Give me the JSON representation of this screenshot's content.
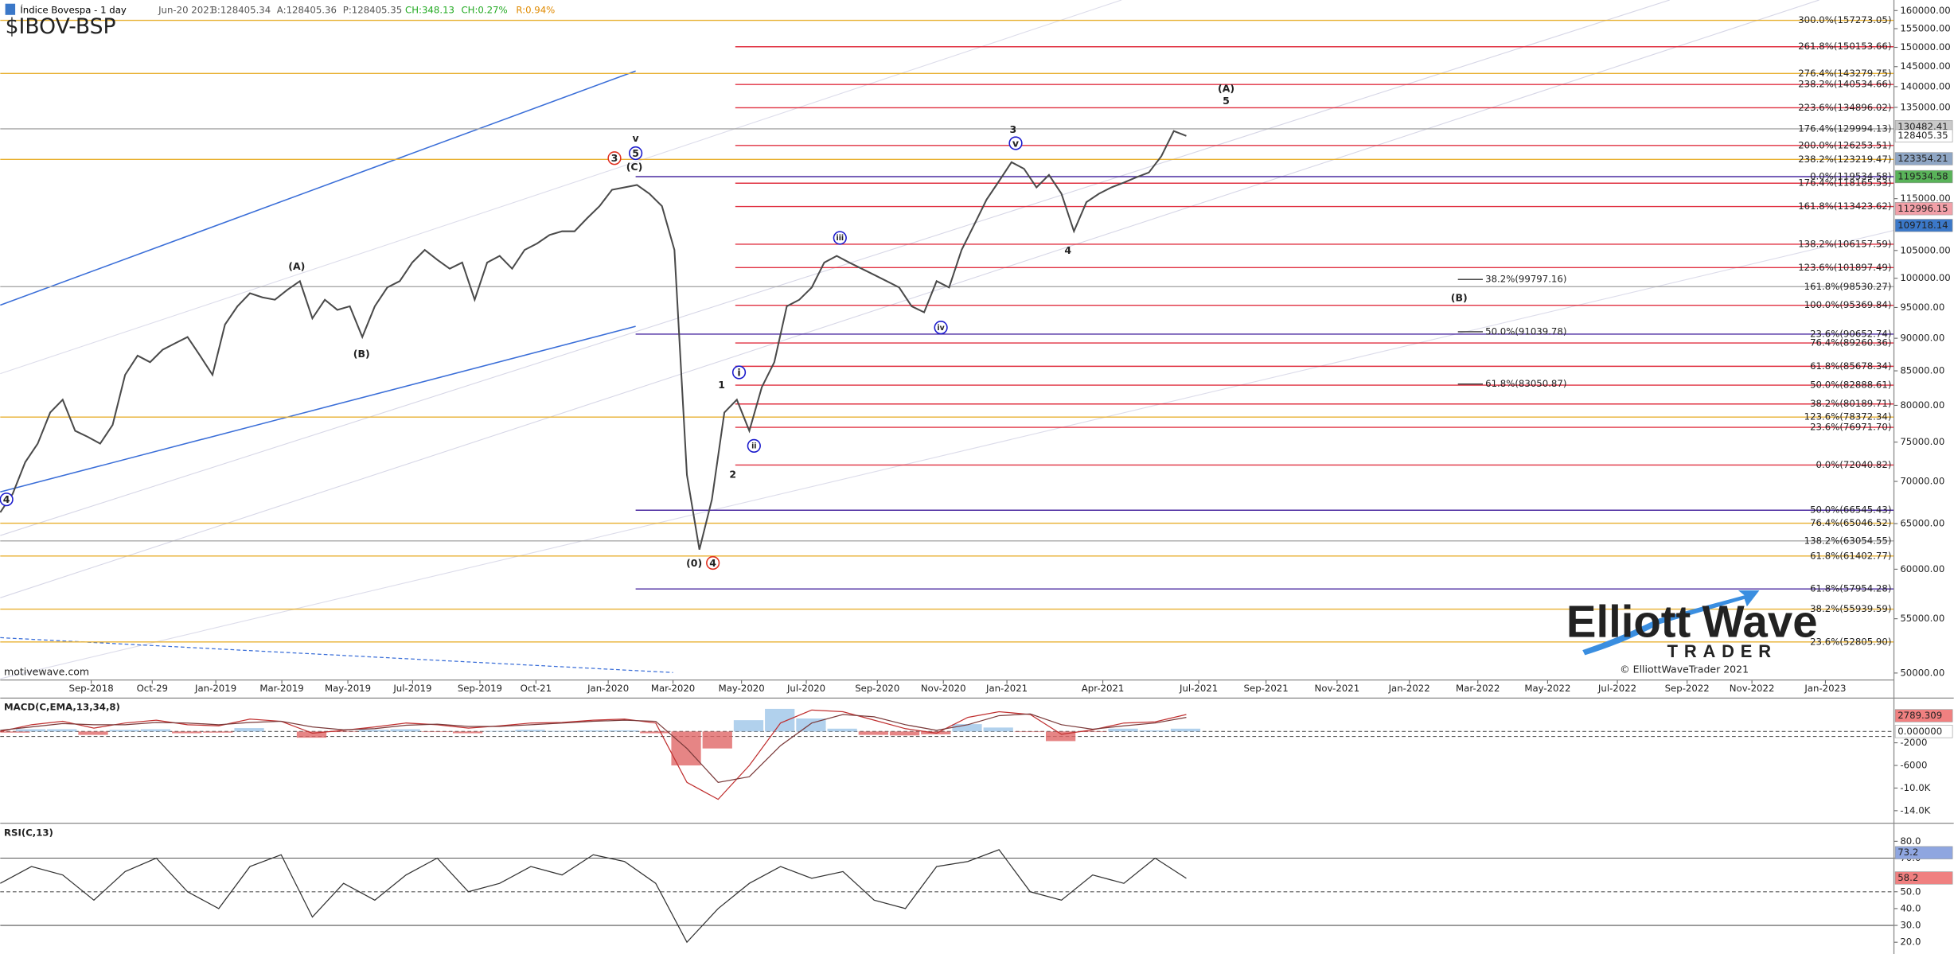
{
  "header": [
    {
      "text": "Índice Bovespa - 1 day",
      "color": "#000000"
    },
    {
      "text": "Jun-20 2021",
      "color": "#555555"
    },
    {
      "text": "B:128405.34",
      "color": "#555555"
    },
    {
      "text": "A:128405.36",
      "color": "#555555"
    },
    {
      "text": "P:128405.35",
      "color": "#555555"
    },
    {
      "text": "CH:348.13",
      "color": "#22aa22"
    },
    {
      "text": "CH:0.27%",
      "color": "#22aa22"
    },
    {
      "text": "R:0.94%",
      "color": "#e08a00"
    }
  ],
  "watermark": "motivewave.com",
  "logo": {
    "word1": "Elliott",
    "word2": "Wave",
    "word3": "TRADER",
    "copyright": "© ElliottWaveTrader 2021"
  },
  "chart_data": [
    {
      "type": "line",
      "title": "$IBOV-BSP",
      "log_scale": true,
      "ylim": [
        49500,
        163000
      ],
      "yticks": [
        {
          "value": 160000,
          "label": "160000.00"
        },
        {
          "value": 155000,
          "label": "155000.00"
        },
        {
          "value": 150000,
          "label": "150000.00"
        },
        {
          "value": 145000,
          "label": "145000.00"
        },
        {
          "value": 140000,
          "label": "140000.00"
        },
        {
          "value": 135000,
          "label": "135000.00"
        },
        {
          "value": 115000,
          "label": "115000.00"
        },
        {
          "value": 105000,
          "label": "105000.00"
        },
        {
          "value": 100000,
          "label": "100000.00"
        },
        {
          "value": 95000,
          "label": "95000.00"
        },
        {
          "value": 90000,
          "label": "90000.00"
        },
        {
          "value": 85000,
          "label": "85000.00"
        },
        {
          "value": 80000,
          "label": "80000.00"
        },
        {
          "value": 75000,
          "label": "75000.00"
        },
        {
          "value": 70000,
          "label": "70000.00"
        },
        {
          "value": 65000,
          "label": "65000.00"
        },
        {
          "value": 60000,
          "label": "60000.00"
        },
        {
          "value": 55000,
          "label": "55000.00"
        },
        {
          "value": 50000,
          "label": "50000.00"
        }
      ],
      "x_labels": [
        "Sep-2018",
        "Oct-29",
        "Jan-2019",
        "Mar-2019",
        "May-2019",
        "Jul-2019",
        "Sep-2019",
        "Oct-21",
        "Jan-2020",
        "Mar-2020",
        "May-2020",
        "Jul-2020",
        "Sep-2020",
        "Nov-2020",
        "Jan-2021",
        "Apr-2021",
        "Jul-2021",
        "Sep-2021",
        "Nov-2021",
        "Jan-2022",
        "Mar-2022",
        "May-2022",
        "Jul-2022",
        "Sep-2022",
        "Nov-2022",
        "Jan-2023"
      ],
      "series": [
        {
          "color": "#4a4a4a",
          "values": [
            66300,
            68500,
            72400,
            74800,
            79000,
            80800,
            76500,
            75700,
            74800,
            77300,
            84400,
            87300,
            86300,
            88200,
            89200,
            90200,
            87300,
            84400,
            92200,
            95200,
            97400,
            96700,
            96300,
            98000,
            99500,
            93200,
            96300,
            94600,
            95200,
            90200,
            95200,
            98400,
            99500,
            102800,
            105100,
            103300,
            101700,
            102800,
            96300,
            102800,
            104000,
            101700,
            105100,
            106300,
            107900,
            108600,
            108600,
            111100,
            113500,
            116800,
            117300,
            117800,
            116000,
            113500,
            105100,
            70800,
            62100,
            67800,
            79000,
            80800,
            76500,
            82600,
            86300,
            95200,
            96300,
            98400,
            102800,
            104000,
            102800,
            101700,
            100600,
            99500,
            98400,
            95200,
            94200,
            99500,
            98400,
            105100,
            109800,
            114800,
            118600,
            122600,
            121200,
            117300,
            119900,
            116000,
            108600,
            114300,
            116000,
            117300,
            118300,
            119400,
            120400,
            123900,
            129500,
            128400
          ]
        }
      ],
      "fib_groups": [
        {
          "color": "#e8b030",
          "levels": [
            {
              "value": 157273.05,
              "label": "300.0%(157273.05)"
            },
            {
              "value": 143279.75,
              "label": "276.4%(143279.75)"
            },
            {
              "value": 123219.47,
              "label": "238.2%(123219.47)"
            },
            {
              "value": 78372.34,
              "label": "123.6%(78372.34)"
            },
            {
              "value": 65046.52,
              "label": "76.4%(65046.52)"
            },
            {
              "value": 61402.77,
              "label": "61.8%(61402.77)"
            },
            {
              "value": 55939.59,
              "label": "38.2%(55939.59)"
            },
            {
              "value": 52805.9,
              "label": "23.6%(52805.90)"
            }
          ]
        },
        {
          "color": "#a8a8a8",
          "levels": [
            {
              "value": 129994.13,
              "label": "176.4%(129994.13)"
            },
            {
              "value": 98530.27,
              "label": "161.8%(98530.27)"
            },
            {
              "value": 63054.55,
              "label": "138.2%(63054.55)"
            }
          ]
        },
        {
          "color": "#e03040",
          "levels": [
            {
              "value": 150153.66,
              "label": "261.8%(150153.66)"
            },
            {
              "value": 140534.66,
              "label": "238.2%(140534.66)"
            },
            {
              "value": 134896.02,
              "label": "223.6%(134896.02)"
            },
            {
              "value": 126253.51,
              "label": "200.0%(126253.51)"
            },
            {
              "value": 118165.53,
              "label": "176.4%(118165.53)"
            },
            {
              "value": 113423.62,
              "label": "161.8%(113423.62)"
            },
            {
              "value": 106157.59,
              "label": "138.2%(106157.59)"
            },
            {
              "value": 101897.49,
              "label": "123.6%(101897.49)"
            },
            {
              "value": 95369.84,
              "label": "100.0%(95369.84)"
            },
            {
              "value": 89260.36,
              "label": "76.4%(89260.36)"
            },
            {
              "value": 85678.34,
              "label": "61.8%(85678.34)"
            },
            {
              "value": 82888.61,
              "label": "50.0%(82888.61)"
            },
            {
              "value": 80189.71,
              "label": "38.2%(80189.71)"
            },
            {
              "value": 76971.7,
              "label": "23.6%(76971.70)"
            },
            {
              "value": 72040.82,
              "label": "0.0%(72040.82)"
            }
          ]
        },
        {
          "color": "#4a2aa0",
          "levels": [
            {
              "value": 119534.58,
              "label": "0.0%(119534.58)"
            },
            {
              "value": 90652.74,
              "label": "23.6%(90652.74)"
            },
            {
              "value": 66545.43,
              "label": "50.0%(66545.43)"
            },
            {
              "value": 57954.28,
              "label": "61.8%(57954.28)"
            }
          ]
        },
        {
          "color": "#333333",
          "levels": [
            {
              "value": 99797.16,
              "label": "38.2%(99797.16)"
            },
            {
              "value": 91039.78,
              "label": "50.0%(91039.78)"
            },
            {
              "value": 83050.87,
              "label": "61.8%(83050.87)"
            }
          ]
        }
      ],
      "badges": [
        {
          "value": 130482.41,
          "color": "#c9c9c9"
        },
        {
          "value": 128405.35,
          "color": "#ffffff"
        },
        {
          "value": 123354.21,
          "color": "#8fa6c4"
        },
        {
          "value": 119534.58,
          "color": "#59b359"
        },
        {
          "value": 112996.15,
          "color": "#f2a0a8"
        },
        {
          "value": 109718.14,
          "color": "#3b78c8"
        }
      ],
      "wave_labels": [
        {
          "text": "4",
          "color": "#1a1acc",
          "circled": true
        },
        {
          "text": "(A)",
          "color": "#1a1acc",
          "circled": false
        },
        {
          "text": "(B)",
          "color": "#1a1acc",
          "circled": false
        },
        {
          "text": "3",
          "color": "#e03020",
          "circled": true
        },
        {
          "text": "v",
          "color": "#1a1acc",
          "circled": false
        },
        {
          "text": "5",
          "color": "#1a1acc",
          "circled": true
        },
        {
          "text": "(C)",
          "color": "#1a1acc",
          "circled": false
        },
        {
          "text": "(0)",
          "color": "#1a1acc",
          "circled": false
        },
        {
          "text": "4",
          "color": "#e03020",
          "circled": true
        },
        {
          "text": "1",
          "color": "#1a1acc",
          "circled": false
        },
        {
          "text": "i",
          "color": "#1a1acc",
          "circled": true
        },
        {
          "text": "2",
          "color": "#1a1acc",
          "circled": false
        },
        {
          "text": "ii",
          "color": "#1a1acc",
          "circled": true
        },
        {
          "text": "iii",
          "color": "#1a1acc",
          "circled": true
        },
        {
          "text": "iv",
          "color": "#1a1acc",
          "circled": true
        },
        {
          "text": "3",
          "color": "#1a1acc",
          "circled": false
        },
        {
          "text": "v",
          "color": "#1a1acc",
          "circled": true
        },
        {
          "text": "4",
          "color": "#1a1acc",
          "circled": false
        },
        {
          "text": "(A)",
          "color": "#4b2a9a",
          "circled": false
        },
        {
          "text": "5",
          "color": "#1a1acc",
          "circled": false
        },
        {
          "text": "(B)",
          "color": "#1a1acc",
          "circled": false
        }
      ]
    },
    {
      "type": "line",
      "title": "MACD(C,EMA,13,34,8)",
      "zero_line": true,
      "ylim": [
        -16000,
        5800
      ],
      "yticks": [
        -2000,
        -6000,
        {
          "value": -10000,
          "label": "-10.0K"
        },
        {
          "value": -14000,
          "label": "-14.0K"
        }
      ],
      "histogram": {
        "pos_color": "#9ec5e8",
        "neg_color": "#e06666",
        "values": [
          -200,
          400,
          400,
          -600,
          300,
          400,
          -300,
          -200,
          600,
          0,
          -1100,
          -100,
          300,
          400,
          -100,
          -300,
          100,
          300,
          100,
          200,
          200,
          -300,
          -6000,
          -3000,
          2000,
          4000,
          2300,
          500,
          -600,
          -700,
          -500,
          1300,
          700,
          -100,
          -1700,
          -100,
          500,
          200,
          500
        ]
      },
      "series": [
        {
          "color": "#c03030",
          "values": [
            0,
            1200,
            1800,
            600,
            1500,
            2000,
            1200,
            1000,
            2200,
            1800,
            -300,
            200,
            800,
            1500,
            1200,
            600,
            1000,
            1500,
            1600,
            2000,
            2200,
            1500,
            -9000,
            -12000,
            -6000,
            1500,
            3800,
            3500,
            2000,
            500,
            -300,
            2500,
            3500,
            3000,
            -500,
            300,
            1500,
            1700,
            3000
          ]
        },
        {
          "color": "#7a3a3a",
          "values": [
            200,
            800,
            1400,
            1200,
            1200,
            1600,
            1500,
            1200,
            1600,
            1800,
            800,
            300,
            500,
            1100,
            1300,
            900,
            900,
            1200,
            1500,
            1800,
            2000,
            1800,
            -3000,
            -9000,
            -8000,
            -2500,
            1500,
            3000,
            2600,
            1200,
            200,
            1200,
            2800,
            3100,
            1200,
            400,
            1000,
            1500,
            2500
          ]
        }
      ],
      "badges": [
        {
          "value": 2789.309,
          "color": "#f08080"
        },
        {
          "value": 0,
          "label": "0.000000",
          "color": "#ffffff"
        }
      ]
    },
    {
      "type": "line",
      "title": "RSI(C,13)",
      "ylim": [
        13,
        90
      ],
      "yticks": [
        {
          "value": 80,
          "label": "80.0"
        },
        {
          "value": 70,
          "label": "70.0"
        },
        {
          "value": 50,
          "label": "50.0"
        },
        {
          "value": 40,
          "label": "40.0"
        },
        {
          "value": 30,
          "label": "30.0"
        },
        {
          "value": 20,
          "label": "20.0"
        }
      ],
      "reference_lines": [
        70,
        50,
        30
      ],
      "series": [
        {
          "color": "#333333",
          "values": [
            55,
            65,
            60,
            45,
            62,
            70,
            50,
            40,
            65,
            72,
            35,
            55,
            45,
            60,
            70,
            50,
            55,
            65,
            60,
            72,
            68,
            55,
            20,
            40,
            55,
            65,
            58,
            62,
            45,
            40,
            65,
            68,
            75,
            50,
            45,
            60,
            55,
            70,
            58
          ]
        }
      ],
      "badges": [
        {
          "value": 73.2,
          "color": "#8fa6e0"
        },
        {
          "value": 58.2,
          "color": "#f08080"
        }
      ]
    }
  ]
}
